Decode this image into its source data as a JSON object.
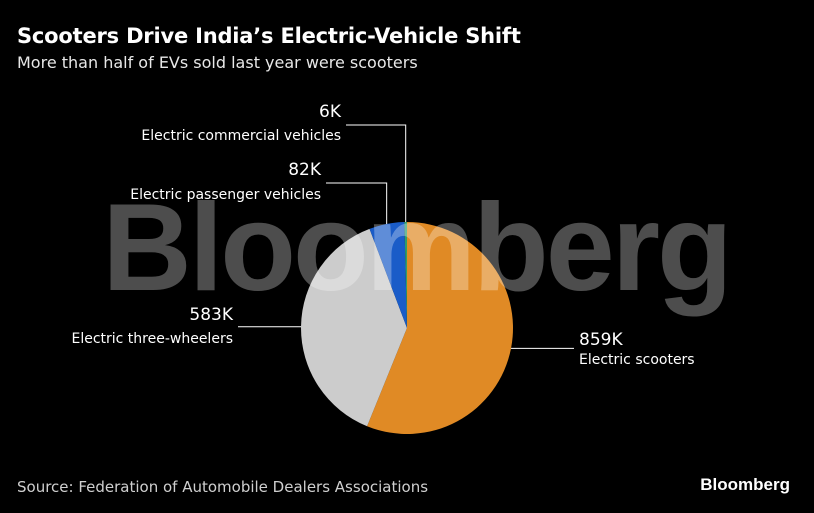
{
  "chart_data": {
    "type": "pie",
    "title": "Scooters Drive India’s Electric-Vehicle Shift",
    "subtitle": "More than half of EVs sold last year were scooters",
    "slices": [
      {
        "name": "Electric scooters",
        "value": 859000,
        "value_label": "859K",
        "color": "#e08a25"
      },
      {
        "name": "Electric three-wheelers",
        "value": 583000,
        "value_label": "583K",
        "color": "#cccccc"
      },
      {
        "name": "Electric passenger vehicles",
        "value": 82000,
        "value_label": "82K",
        "color": "#1a5cc8"
      },
      {
        "name": "Electric commercial vehicles",
        "value": 6000,
        "value_label": "6K",
        "color": "#2f9e6a"
      }
    ],
    "start": "12 o'clock",
    "direction": "clockwise",
    "source": "Source: Federation of Automobile Dealers Associations"
  },
  "brand": "Bloomberg",
  "watermark": "Bloomberg"
}
